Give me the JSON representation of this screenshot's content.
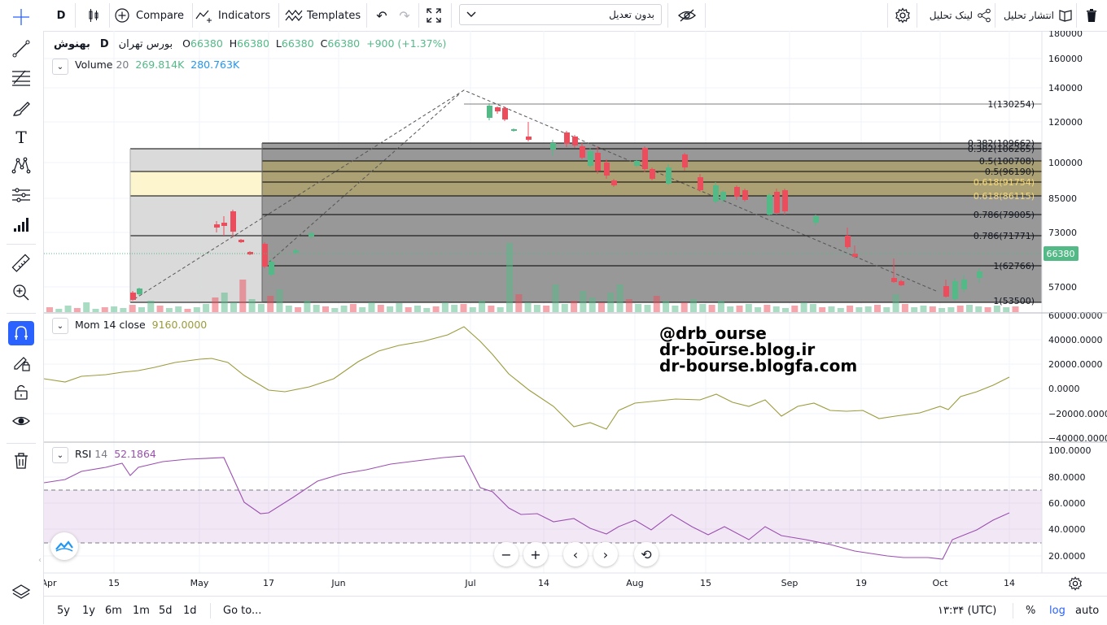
{
  "toolbar": {
    "interval": "D",
    "compare": "Compare",
    "indicators": "Indicators",
    "templates": "Templates",
    "adjust_select": "بدون تعدیل",
    "share_link": "لینک تحلیل",
    "publish": "انتشار تحلیل"
  },
  "legend": {
    "symbol": "بهنوش",
    "interval": "D",
    "exchange": "بورس تهران",
    "o_label": "O",
    "o_value": "66380",
    "h_label": "H",
    "h_value": "66380",
    "l_label": "L",
    "l_value": "66380",
    "c_label": "C",
    "c_value": "66380",
    "change": "+900 (+1.37%)",
    "volume_name": "Volume",
    "volume_len": "20",
    "volume_v1": "269.814K",
    "volume_v2": "280.763K",
    "mom_name": "Mom",
    "mom_params": "14 close",
    "mom_value": "9160.0000",
    "rsi_name": "RSI",
    "rsi_len": "14",
    "rsi_value": "52.1864"
  },
  "watermark": [
    "@drb_ourse",
    "dr-bourse.blog.ir",
    "dr-bourse.blogfa.com"
  ],
  "colors": {
    "up": "#53b987",
    "down": "#eb4d5c",
    "mom": "#9b9b3c",
    "rsi": "#9c4fb0",
    "accent": "#2962ff"
  },
  "price_axis": [
    "180000",
    "160000",
    "140000",
    "120000",
    "100000",
    "85000",
    "73000",
    "57000"
  ],
  "price_badge": "66380",
  "mom_axis": [
    "60000.0000",
    "40000.0000",
    "20000.0000",
    "0.0000",
    "−20000.0000",
    "−40000.0000"
  ],
  "rsi_axis": [
    "100.0000",
    "80.0000",
    "60.0000",
    "40.0000",
    "20.0000"
  ],
  "fib_labels": [
    "1(130254)",
    "0.382(109662)",
    "0.382(106265)",
    "0.5(100708)",
    "0.5(96190)",
    "0.618(91754)",
    "0.618(86115)",
    "0.786(79005)",
    "0.786(71771)",
    "1(62766)",
    "1(53500)"
  ],
  "time_axis": [
    "Apr",
    "15",
    "May",
    "17",
    "Jun",
    "Jul",
    "14",
    "Aug",
    "15",
    "Sep",
    "19",
    "Oct",
    "14"
  ],
  "bottom": {
    "ranges": [
      "5y",
      "1y",
      "6m",
      "1m",
      "5d",
      "1d"
    ],
    "goto": "Go to...",
    "clock": "۱۳:۳۴ (UTC)",
    "percent": "%",
    "log": "log",
    "auto": "auto"
  },
  "icons": [
    "crosshair-icon",
    "trendline-icon",
    "fib-icon",
    "brush-icon",
    "text-icon",
    "pattern-icon",
    "prediction-icon",
    "volume-profile-icon",
    "ruler-icon",
    "zoom-icon",
    "magnet-icon",
    "lock-draw-icon",
    "lock-icon",
    "eye-icon",
    "trash-icon",
    "layers-icon"
  ]
}
